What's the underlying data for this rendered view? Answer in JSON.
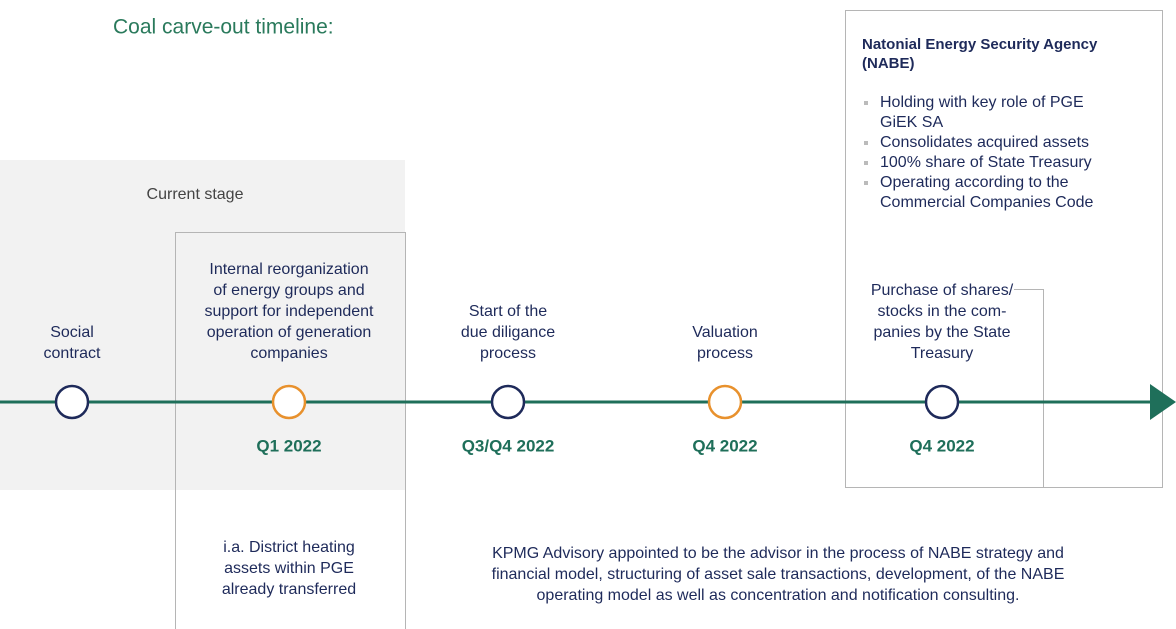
{
  "title": "Coal carve-out timeline:",
  "current_stage": "Current stage",
  "milestones": [
    {
      "label": [
        "Social",
        "contract"
      ]
    },
    {
      "label": [
        "Internal reorganization",
        "of energy groups and",
        "support for independent",
        "operation of generation",
        "companies"
      ],
      "date": "Q1 2022"
    },
    {
      "label": [
        "Start of the",
        "due diligance",
        "process"
      ],
      "date": "Q3/Q4 2022"
    },
    {
      "label": [
        "Valuation",
        "process"
      ],
      "date": "Q4 2022"
    },
    {
      "label": [
        "Purchase of shares/",
        "stocks in the com-",
        "panies by the State",
        "Treasury"
      ],
      "date": "Q4 2022"
    }
  ],
  "nabe": {
    "title": [
      "Natonial Energy Security Agency",
      "(NABE)"
    ],
    "bullets": [
      [
        "Holding with key role of PGE",
        "GiEK SA"
      ],
      [
        "Consolidates acquired assets"
      ],
      [
        "100% share of State Treasury"
      ],
      [
        "Operating according to the",
        "Commercial Companies Code"
      ]
    ]
  },
  "notes": {
    "district": [
      "i.a. District heating",
      "assets within PGE",
      "already transferred"
    ],
    "kpmg": [
      "KPMG Advisory appointed to be the advisor in the process of NABE strategy and",
      "financial model, structuring of asset sale transactions, development, of the NABE",
      "operating model as well as concentration and notification consulting."
    ]
  }
}
